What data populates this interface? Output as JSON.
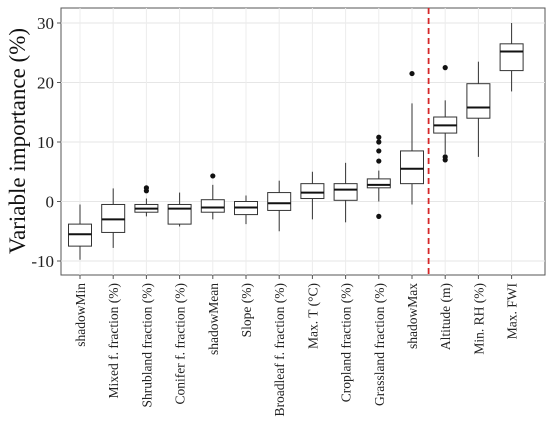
{
  "chart_data": {
    "type": "boxplot",
    "ylabel": "Variable importance (%)",
    "xlabel": "",
    "ylim": [
      -12,
      31
    ],
    "yticks": [
      -10,
      0,
      10,
      20,
      30
    ],
    "grid": true,
    "divider_after_index": 10,
    "divider_color": "#d62728",
    "box_fill": "#ffffff",
    "box_stroke": "#333333",
    "categories": [
      "shadowMin",
      "Mixed f. fraction (%)",
      "Shrubland fraction (%)",
      "Conifer f. fraction (%)",
      "shadowMean",
      "Slope (%)",
      "Broadleaf f. fraction (%)",
      "Max. T (°C)",
      "Cropland fraction (%)",
      "Grassland fraction (%)",
      "shadowMax",
      "Altitude (m)",
      "Min. RH (%)",
      "Max. FWI"
    ],
    "boxes": [
      {
        "whisker_low": -9.8,
        "q1": -7.5,
        "median": -5.5,
        "q3": -3.8,
        "whisker_high": -0.5,
        "outliers": []
      },
      {
        "whisker_low": -7.8,
        "q1": -5.2,
        "median": -3.0,
        "q3": -0.5,
        "whisker_high": 2.2,
        "outliers": []
      },
      {
        "whisker_low": -2.5,
        "q1": -1.8,
        "median": -1.2,
        "q3": -0.5,
        "whisker_high": 0.5,
        "outliers": [
          1.8,
          2.3
        ]
      },
      {
        "whisker_low": -4.2,
        "q1": -3.8,
        "median": -1.2,
        "q3": -0.5,
        "whisker_high": 1.5,
        "outliers": []
      },
      {
        "whisker_low": -3.0,
        "q1": -1.8,
        "median": -1.0,
        "q3": 0.3,
        "whisker_high": 2.8,
        "outliers": [
          4.3
        ]
      },
      {
        "whisker_low": -3.8,
        "q1": -2.2,
        "median": -1.0,
        "q3": 0.0,
        "whisker_high": 1.0,
        "outliers": []
      },
      {
        "whisker_low": -5.0,
        "q1": -1.5,
        "median": -0.3,
        "q3": 1.5,
        "whisker_high": 3.5,
        "outliers": []
      },
      {
        "whisker_low": -3.0,
        "q1": 0.5,
        "median": 1.5,
        "q3": 3.0,
        "whisker_high": 5.0,
        "outliers": []
      },
      {
        "whisker_low": -3.5,
        "q1": 0.2,
        "median": 2.0,
        "q3": 3.0,
        "whisker_high": 6.5,
        "outliers": []
      },
      {
        "whisker_low": 0.0,
        "q1": 2.3,
        "median": 2.8,
        "q3": 3.8,
        "whisker_high": 5.2,
        "outliers": [
          -2.5,
          6.8,
          8.5,
          10.0,
          10.8
        ]
      },
      {
        "whisker_low": -0.5,
        "q1": 3.0,
        "median": 5.5,
        "q3": 8.5,
        "whisker_high": 16.5,
        "outliers": [
          21.5
        ]
      },
      {
        "whisker_low": 8.0,
        "q1": 11.5,
        "median": 12.8,
        "q3": 14.2,
        "whisker_high": 17.0,
        "outliers": [
          7.0,
          7.5,
          22.5
        ]
      },
      {
        "whisker_low": 7.5,
        "q1": 14.0,
        "median": 15.8,
        "q3": 19.8,
        "whisker_high": 23.5,
        "outliers": []
      },
      {
        "whisker_low": 18.5,
        "q1": 22.0,
        "median": 25.2,
        "q3": 26.5,
        "whisker_high": 30.0,
        "outliers": []
      }
    ]
  }
}
